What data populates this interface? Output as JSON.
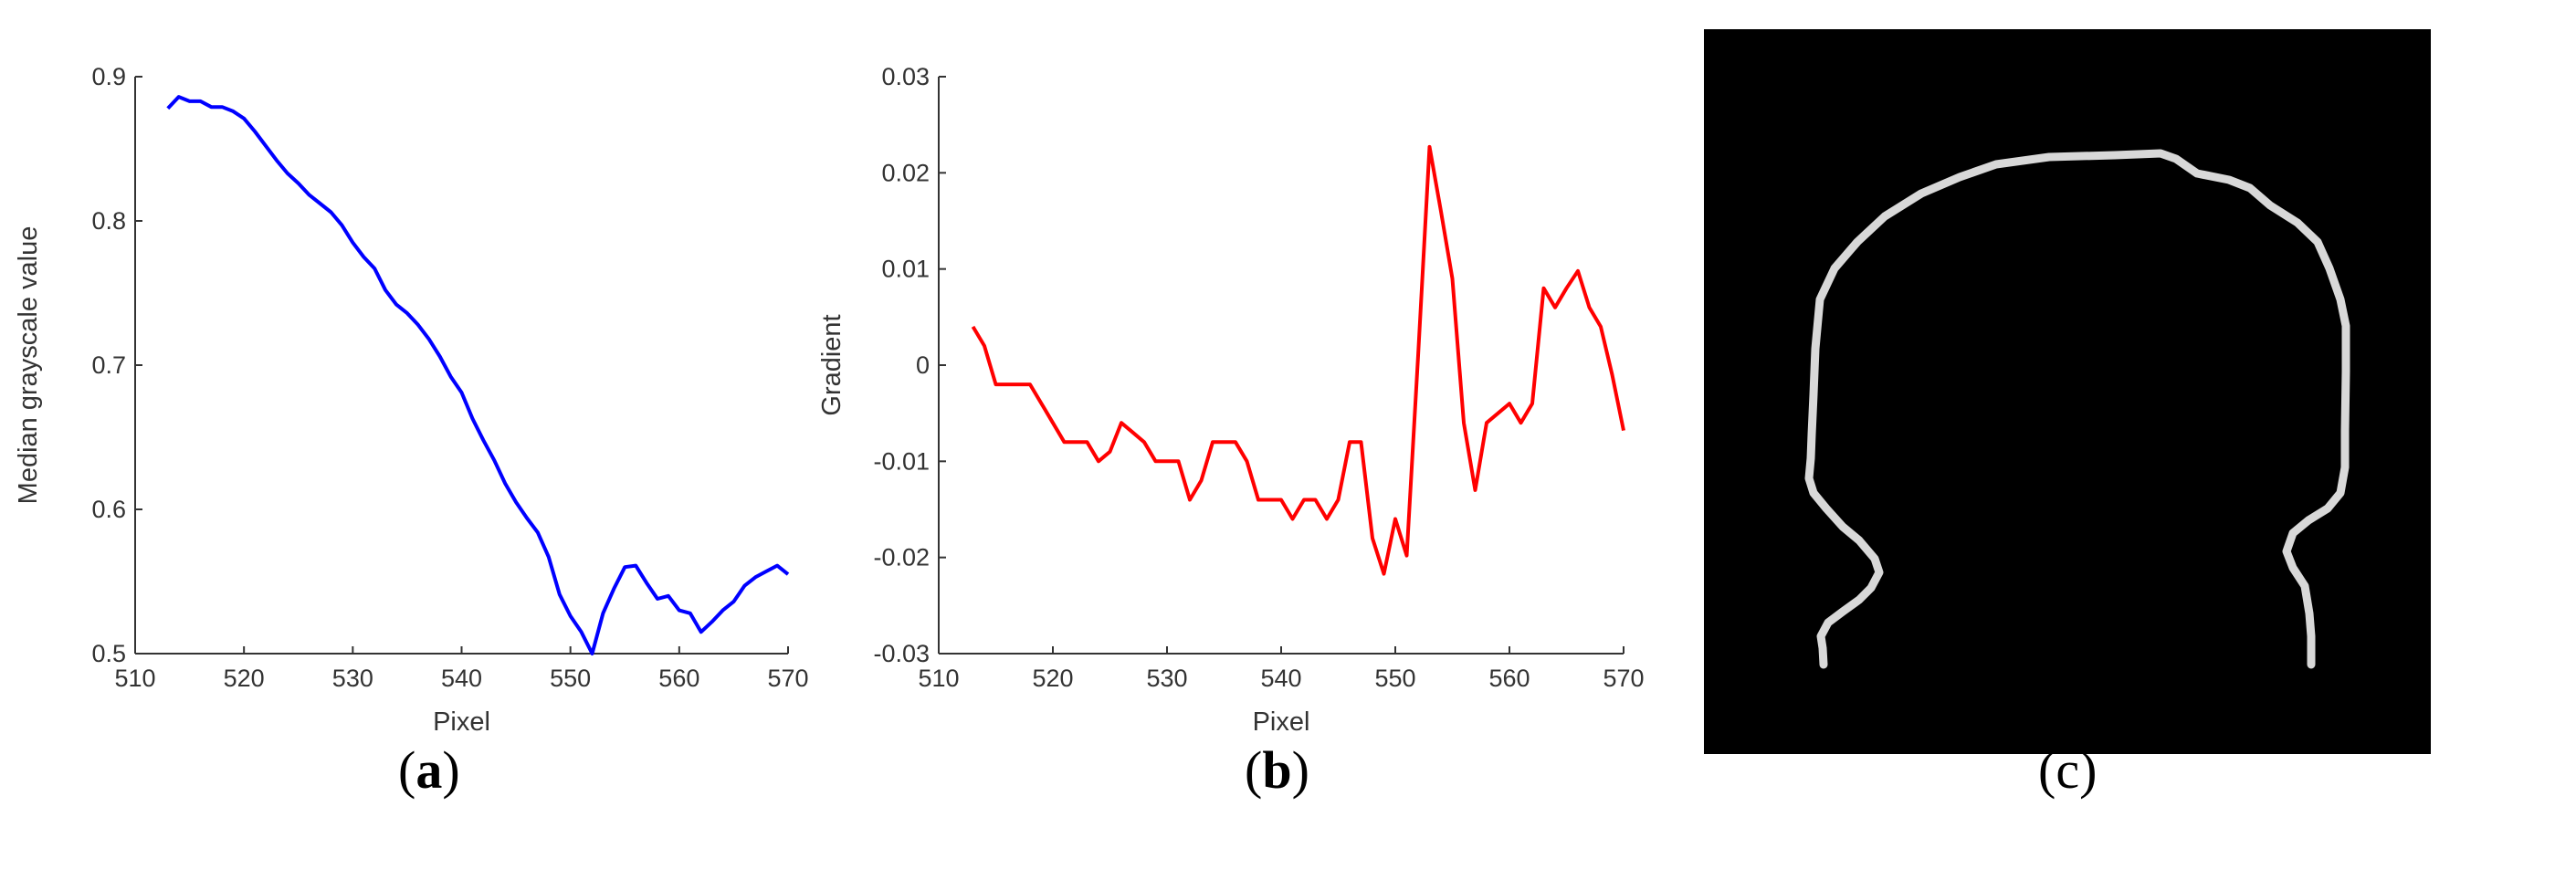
{
  "chart_data": [
    {
      "panel": "(a)",
      "type": "line",
      "xlabel": "Pixel",
      "ylabel": "Median grayscale value",
      "xlim": [
        510,
        570
      ],
      "ylim": [
        0.5,
        0.9
      ],
      "xticks": [
        "510",
        "520",
        "530",
        "540",
        "550",
        "560",
        "570"
      ],
      "yticks": [
        "0.5",
        "0.6",
        "0.7",
        "0.8",
        "0.9"
      ],
      "grid": false,
      "color": "#0000ff",
      "series": [
        {
          "x": [
            513,
            514,
            515,
            516,
            517,
            518,
            519,
            520,
            521,
            522,
            523,
            524,
            525,
            526,
            527,
            528,
            529,
            530,
            531,
            532,
            533,
            534,
            535,
            536,
            537,
            538,
            539,
            540,
            541,
            542,
            543,
            544,
            545,
            546,
            547,
            548,
            549,
            550,
            551,
            552,
            553,
            554,
            555,
            556,
            557,
            558,
            559,
            560,
            561,
            562,
            563,
            564,
            565,
            566,
            567,
            568,
            569,
            570
          ],
          "y": [
            0.878,
            0.886,
            0.883,
            0.883,
            0.879,
            0.879,
            0.876,
            0.871,
            0.862,
            0.852,
            0.842,
            0.833,
            0.826,
            0.818,
            0.812,
            0.806,
            0.797,
            0.785,
            0.775,
            0.767,
            0.752,
            0.742,
            0.736,
            0.728,
            0.718,
            0.706,
            0.692,
            0.681,
            0.663,
            0.648,
            0.634,
            0.618,
            0.605,
            0.594,
            0.584,
            0.567,
            0.541,
            0.526,
            0.515,
            0.5,
            0.528,
            0.545,
            0.56,
            0.561,
            0.549,
            0.538,
            0.54,
            0.53,
            0.528,
            0.515,
            0.522,
            0.53,
            0.536,
            0.547,
            0.553,
            0.557,
            0.561,
            0.555
          ]
        }
      ]
    },
    {
      "panel": "(b)",
      "type": "line",
      "xlabel": "Pixel",
      "ylabel": "Gradient",
      "xlim": [
        510,
        570
      ],
      "ylim": [
        -0.03,
        0.03
      ],
      "xticks": [
        "510",
        "520",
        "530",
        "540",
        "550",
        "560",
        "570"
      ],
      "yticks": [
        "-0.03",
        "-0.02",
        "-0.01",
        "0",
        "0.01",
        "0.02",
        "0.03"
      ],
      "grid": false,
      "color": "#ff0000",
      "series": [
        {
          "x": [
            513,
            514,
            515,
            516,
            517,
            518,
            519,
            520,
            521,
            522,
            523,
            524,
            525,
            526,
            527,
            528,
            529,
            530,
            531,
            532,
            533,
            534,
            535,
            536,
            537,
            538,
            539,
            540,
            541,
            542,
            543,
            544,
            545,
            546,
            547,
            548,
            549,
            550,
            551,
            552,
            553,
            554,
            555,
            556,
            557,
            558,
            559,
            560,
            561,
            562,
            563,
            564,
            565,
            566,
            567,
            568,
            569,
            570
          ],
          "y": [
            0.004,
            0.002,
            -0.002,
            -0.002,
            -0.002,
            -0.002,
            -0.004,
            -0.006,
            -0.008,
            -0.008,
            -0.008,
            -0.01,
            -0.009,
            -0.006,
            -0.007,
            -0.008,
            -0.01,
            -0.01,
            -0.01,
            -0.014,
            -0.012,
            -0.008,
            -0.008,
            -0.008,
            -0.01,
            -0.014,
            -0.014,
            -0.014,
            -0.016,
            -0.014,
            -0.014,
            -0.016,
            -0.014,
            -0.008,
            -0.008,
            -0.018,
            -0.0217,
            -0.016,
            -0.0198,
            0.001,
            0.0227,
            0.016,
            0.009,
            -0.006,
            -0.013,
            -0.006,
            -0.005,
            -0.004,
            -0.006,
            -0.004,
            0.008,
            0.006,
            0.008,
            0.0098,
            0.006,
            0.004,
            -0.001,
            -0.0068
          ]
        }
      ]
    }
  ],
  "captions": {
    "a": "a",
    "b": "b",
    "c": "c"
  },
  "colors": {
    "line_a": "#0000ff",
    "line_b": "#ff0000",
    "image_bg": "#000000",
    "contour": "#d8d8d8"
  }
}
